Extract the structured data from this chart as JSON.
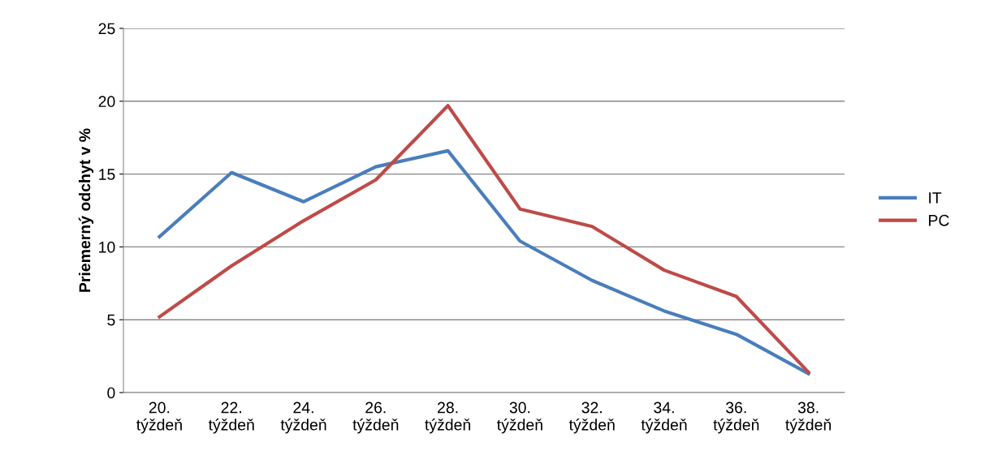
{
  "chart_data": {
    "type": "line",
    "ylabel": "Priemerný odchyt v %",
    "categories": [
      "20.\ntýždeň",
      "22.\ntýždeň",
      "24.\ntýždeň",
      "26.\ntýždeň",
      "28.\ntýždeň",
      "30.\ntýždeň",
      "32.\ntýždeň",
      "34.\ntýždeň",
      "36.\ntýždeň",
      "38.\ntýždeň"
    ],
    "series": [
      {
        "name": "IT",
        "color": "#4a7ebb",
        "values": [
          10.7,
          15.1,
          13.1,
          15.5,
          16.6,
          10.4,
          7.7,
          5.6,
          4.0,
          1.3
        ]
      },
      {
        "name": "PC",
        "color": "#be4b48",
        "values": [
          5.2,
          8.7,
          11.8,
          14.6,
          19.7,
          12.6,
          11.4,
          8.4,
          6.6,
          1.4
        ]
      }
    ],
    "ylim": [
      0,
      25
    ],
    "yticks": [
      0,
      5,
      10,
      15,
      20,
      25
    ],
    "grid": "y",
    "legend": "right",
    "marker": "none",
    "line_style": "solid"
  }
}
